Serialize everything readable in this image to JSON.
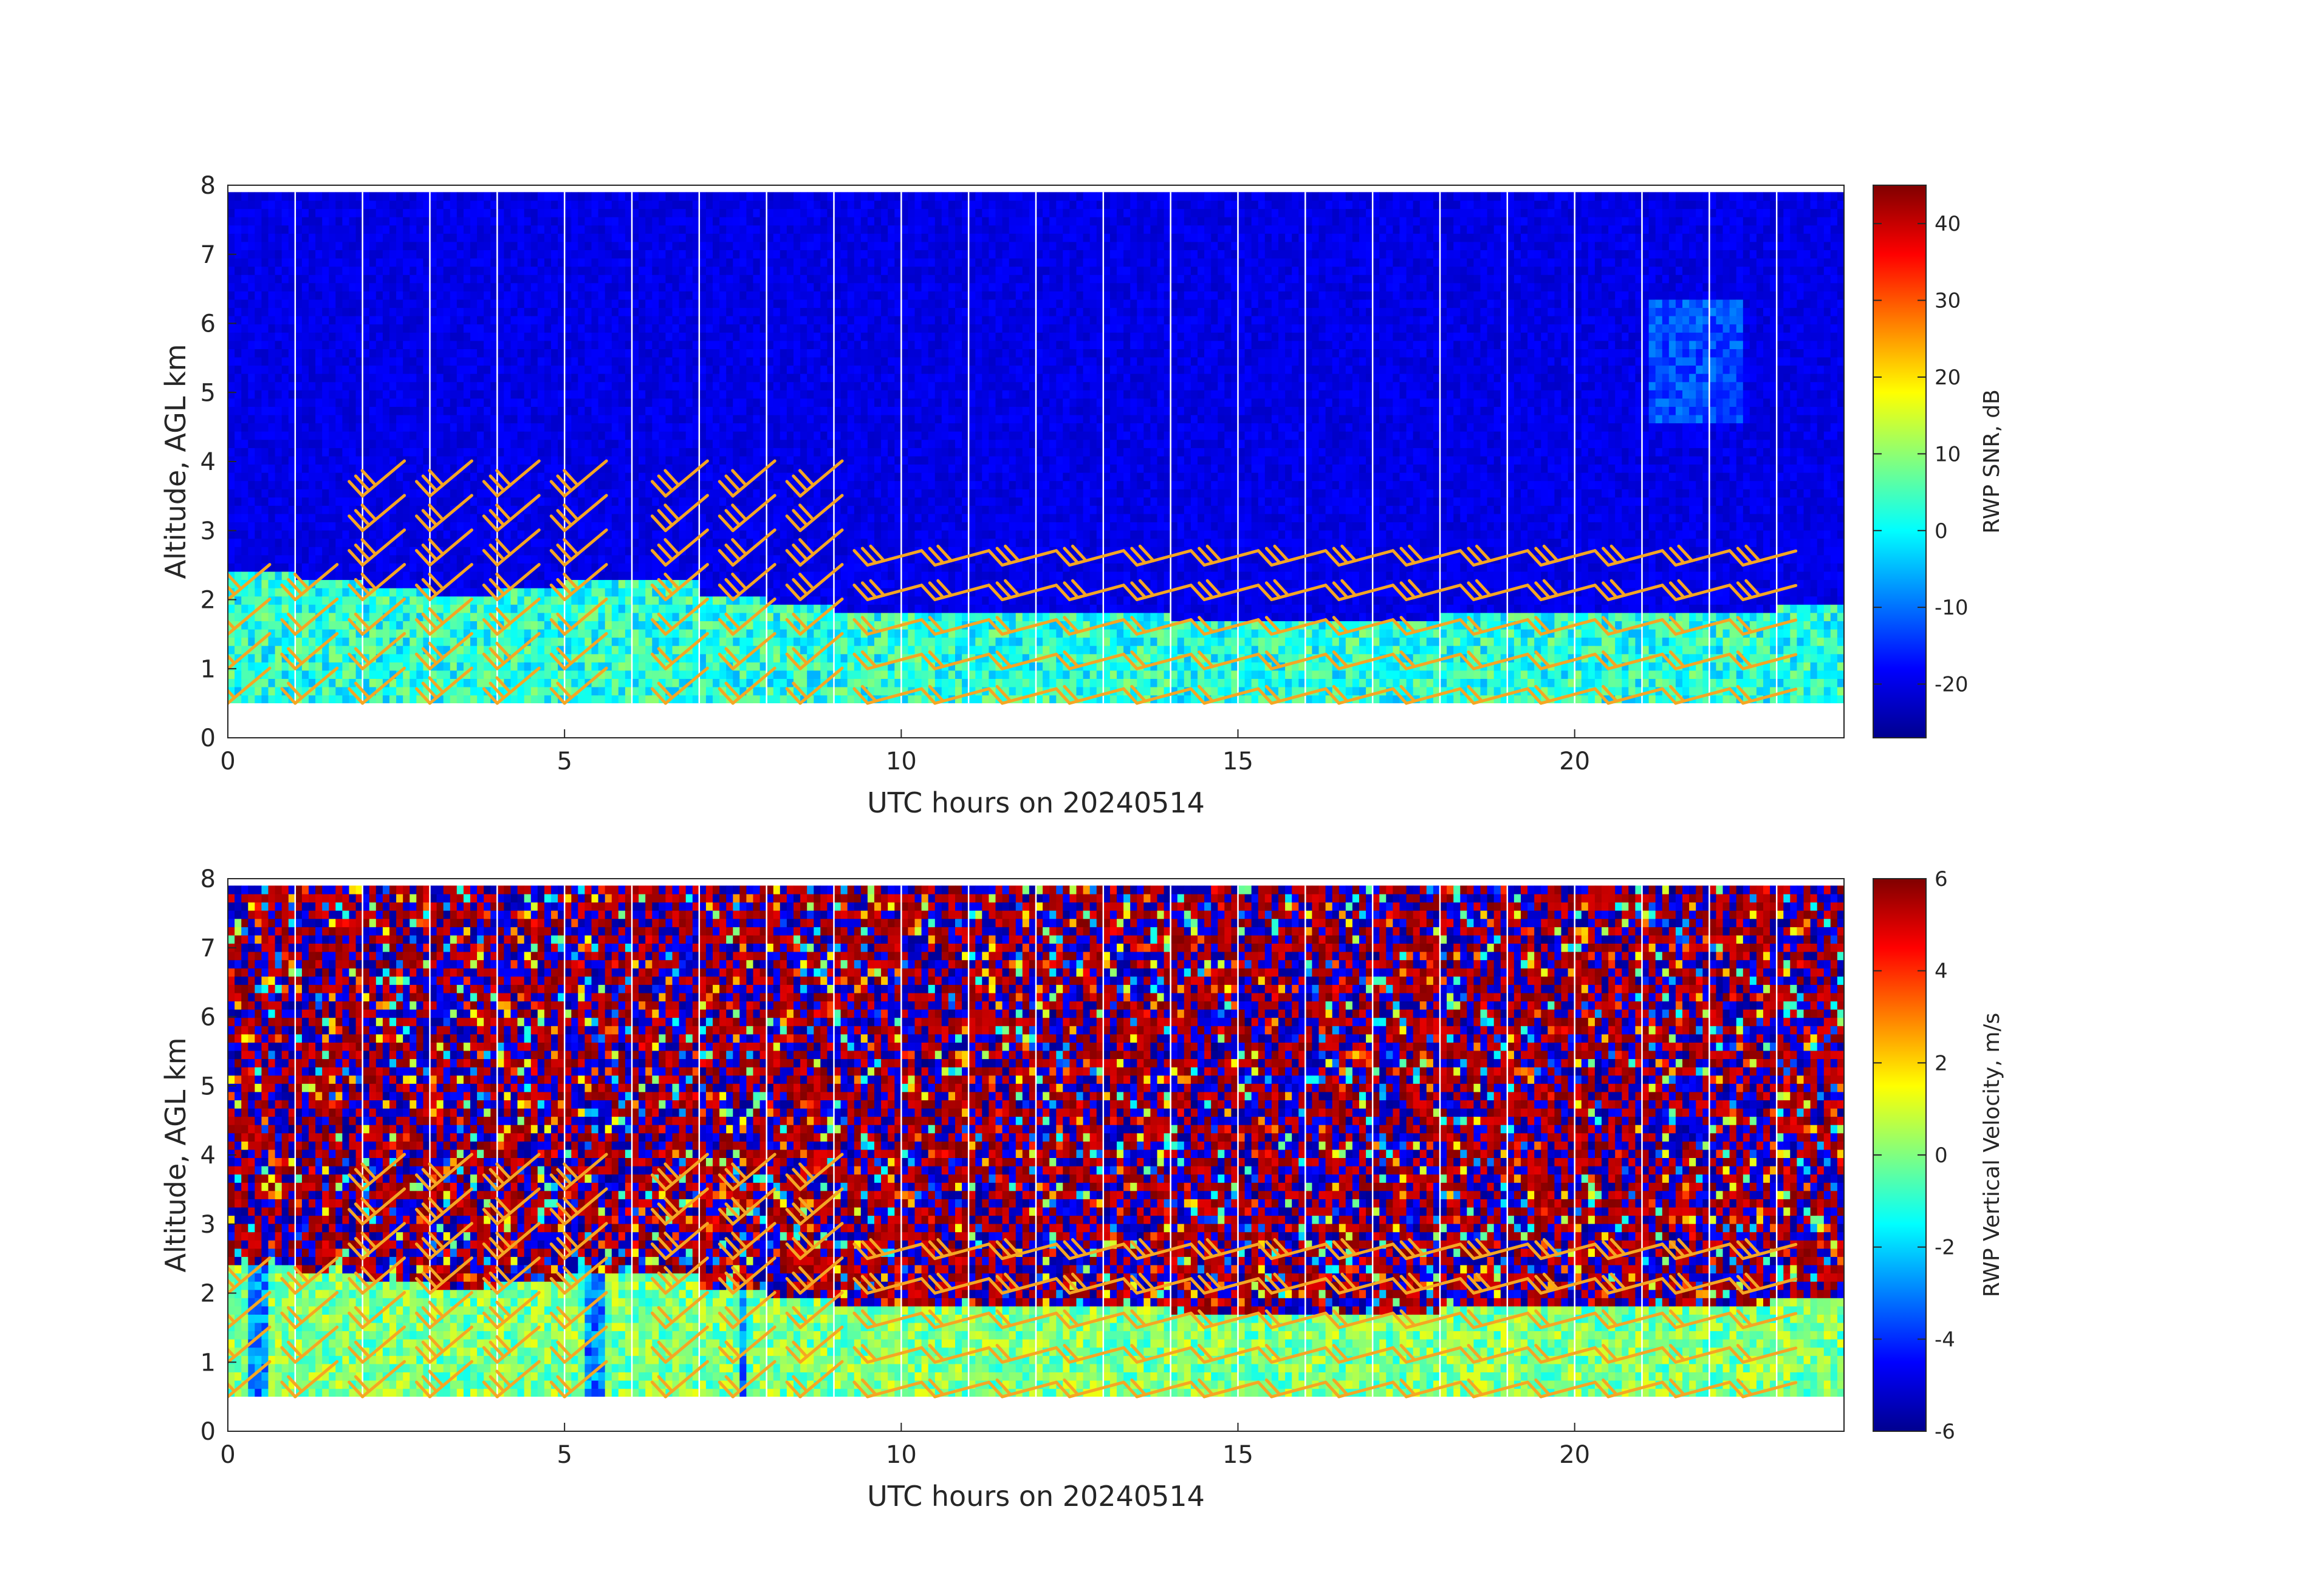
{
  "chart_data": [
    {
      "type": "heatmap",
      "xlabel": "UTC hours on 20240514",
      "ylabel": "Altitude, AGL km",
      "colorbar_label": "RWP SNR, dB",
      "xlim": [
        0,
        24
      ],
      "ylim": [
        0,
        8
      ],
      "xticks": [
        "0",
        "5",
        "10",
        "15",
        "20"
      ],
      "xtick_values": [
        0,
        5,
        10,
        15,
        20
      ],
      "yticks": [
        "0",
        "1",
        "2",
        "3",
        "4",
        "5",
        "6",
        "7",
        "8"
      ],
      "ytick_values": [
        0,
        1,
        2,
        3,
        4,
        5,
        6,
        7,
        8
      ],
      "clim": [
        -27,
        45
      ],
      "cticks": [
        "-20",
        "-10",
        "0",
        "10",
        "20",
        "30",
        "40"
      ],
      "ctick_values": [
        -20,
        -10,
        0,
        10,
        20,
        30,
        40
      ],
      "colormap": "jet",
      "data_altitude_range_km": [
        0.5,
        7.9
      ],
      "boundary_layer_top_km": [
        2.3,
        2.2,
        2.1,
        2.0,
        2.1,
        2.2,
        2.2,
        2.0,
        1.9,
        1.8,
        1.8,
        1.75,
        1.7,
        1.7,
        1.65,
        1.65,
        1.65,
        1.65,
        1.7,
        1.7,
        1.7,
        1.75,
        1.8,
        1.85
      ],
      "wind_barb_color": "#f5a623"
    },
    {
      "type": "heatmap",
      "xlabel": "UTC hours on 20240514",
      "ylabel": "Altitude, AGL km",
      "colorbar_label": "RWP Vertical Velocity, m/s",
      "xlim": [
        0,
        24
      ],
      "ylim": [
        0,
        8
      ],
      "xticks": [
        "0",
        "5",
        "10",
        "15",
        "20"
      ],
      "xtick_values": [
        0,
        5,
        10,
        15,
        20
      ],
      "yticks": [
        "0",
        "1",
        "2",
        "3",
        "4",
        "5",
        "6",
        "7",
        "8"
      ],
      "ytick_values": [
        0,
        1,
        2,
        3,
        4,
        5,
        6,
        7,
        8
      ],
      "clim": [
        -6,
        6
      ],
      "cticks": [
        "-6",
        "-4",
        "-2",
        "0",
        "2",
        "4",
        "6"
      ],
      "ctick_values": [
        -6,
        -4,
        -2,
        0,
        2,
        4,
        6
      ],
      "colormap": "jet",
      "data_altitude_range_km": [
        0.5,
        7.9
      ],
      "wind_barb_color": "#f5a623"
    }
  ],
  "wind_barbs": {
    "hours": [
      0,
      1,
      2,
      3,
      4,
      5,
      6.5,
      7.5,
      8.5,
      9.5,
      10.5,
      11.5,
      12.5,
      13.5,
      14.5,
      15.5,
      16.5,
      17.5,
      18.5,
      19.5,
      20.5,
      21.5,
      22.5
    ],
    "levels_km": [
      0.5,
      1.0,
      1.5,
      2.0,
      2.5,
      3.0,
      3.5
    ]
  }
}
